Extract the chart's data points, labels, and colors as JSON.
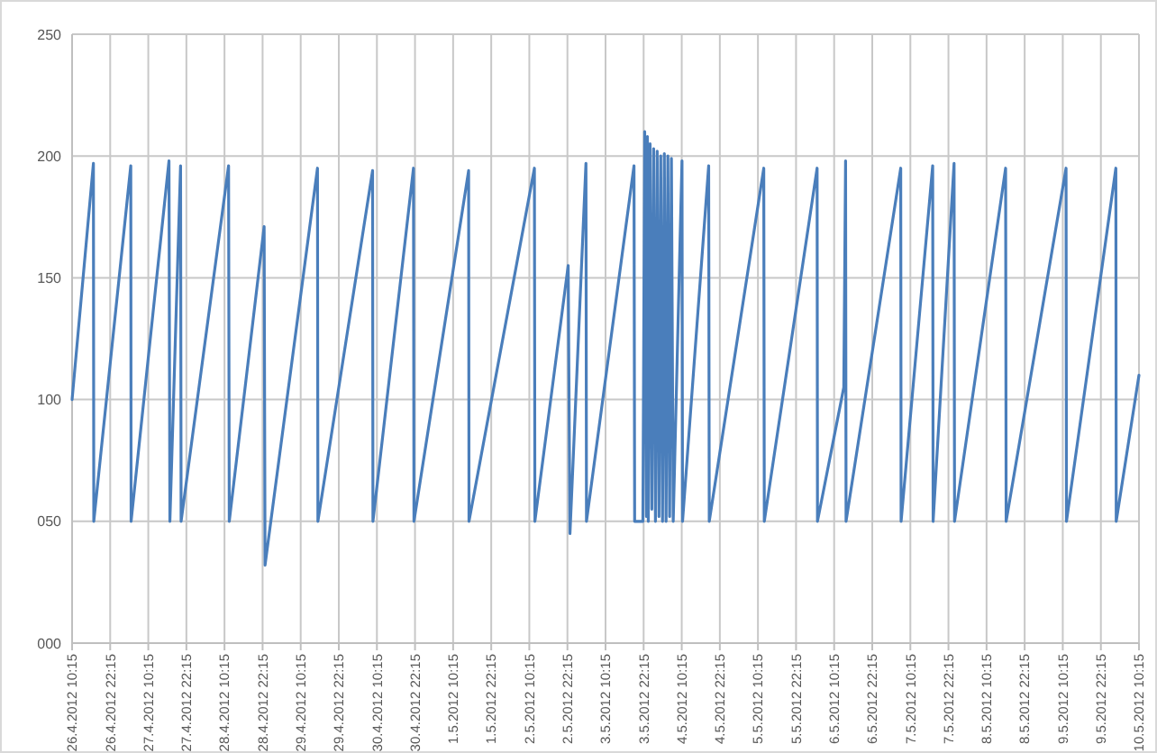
{
  "chart_data": {
    "type": "line",
    "grid": true,
    "marker": "none",
    "line_style": "solid",
    "ylim": [
      0,
      250
    ],
    "yticks": [
      {
        "value": 0,
        "label": "000"
      },
      {
        "value": 50,
        "label": "050"
      },
      {
        "value": 100,
        "label": "100"
      },
      {
        "value": 150,
        "label": "150"
      },
      {
        "value": 200,
        "label": "200"
      },
      {
        "value": 250,
        "label": "250"
      }
    ],
    "xlim": [
      "2012-04-26T10:15",
      "2012-05-10T10:15"
    ],
    "xticks": [
      {
        "value": "2012-04-26T10:15",
        "label": "26.4.2012 10:15"
      },
      {
        "value": "2012-04-26T22:15",
        "label": "26.4.2012 22:15"
      },
      {
        "value": "2012-04-27T10:15",
        "label": "27.4.2012 10:15"
      },
      {
        "value": "2012-04-27T22:15",
        "label": "27.4.2012 22:15"
      },
      {
        "value": "2012-04-28T10:15",
        "label": "28.4.2012 10:15"
      },
      {
        "value": "2012-04-28T22:15",
        "label": "28.4.2012 22:15"
      },
      {
        "value": "2012-04-29T10:15",
        "label": "29.4.2012 10:15"
      },
      {
        "value": "2012-04-29T22:15",
        "label": "29.4.2012 22:15"
      },
      {
        "value": "2012-04-30T10:15",
        "label": "30.4.2012 10:15"
      },
      {
        "value": "2012-04-30T22:15",
        "label": "30.4.2012 22:15"
      },
      {
        "value": "2012-05-01T10:15",
        "label": "1.5.2012 10:15"
      },
      {
        "value": "2012-05-01T22:15",
        "label": "1.5.2012 22:15"
      },
      {
        "value": "2012-05-02T10:15",
        "label": "2.5.2012 10:15"
      },
      {
        "value": "2012-05-02T22:15",
        "label": "2.5.2012 22:15"
      },
      {
        "value": "2012-05-03T10:15",
        "label": "3.5.2012 10:15"
      },
      {
        "value": "2012-05-03T22:15",
        "label": "3.5.2012 22:15"
      },
      {
        "value": "2012-05-04T10:15",
        "label": "4.5.2012 10:15"
      },
      {
        "value": "2012-05-04T22:15",
        "label": "4.5.2012 22:15"
      },
      {
        "value": "2012-05-05T10:15",
        "label": "5.5.2012 10:15"
      },
      {
        "value": "2012-05-05T22:15",
        "label": "5.5.2012 22:15"
      },
      {
        "value": "2012-05-06T10:15",
        "label": "6.5.2012 10:15"
      },
      {
        "value": "2012-05-06T22:15",
        "label": "6.5.2012 22:15"
      },
      {
        "value": "2012-05-07T10:15",
        "label": "7.5.2012 10:15"
      },
      {
        "value": "2012-05-07T22:15",
        "label": "7.5.2012 22:15"
      },
      {
        "value": "2012-05-08T10:15",
        "label": "8.5.2012 10:15"
      },
      {
        "value": "2012-05-08T22:15",
        "label": "8.5.2012 22:15"
      },
      {
        "value": "2012-05-09T10:15",
        "label": "9.5.2012 10:15"
      },
      {
        "value": "2012-05-09T22:15",
        "label": "9.5.2012 22:15"
      },
      {
        "value": "2012-05-10T10:15",
        "label": "10.5.2012 10:15"
      }
    ],
    "series": [
      {
        "color": "#4a7ebb",
        "x": [
          "2012-04-26T10:15",
          "2012-04-26T16:58",
          "2012-04-26T17:05",
          "2012-04-27T04:44",
          "2012-04-27T04:50",
          "2012-04-27T16:46",
          "2012-04-27T17:03",
          "2012-04-27T20:25",
          "2012-04-27T20:35",
          "2012-04-28T11:32",
          "2012-04-28T11:45",
          "2012-04-28T22:44",
          "2012-04-28T23:01",
          "2012-04-29T15:32",
          "2012-04-29T15:40",
          "2012-04-30T08:53",
          "2012-04-30T09:00",
          "2012-04-30T21:46",
          "2012-04-30T21:55",
          "2012-05-01T15:08",
          "2012-05-01T15:15",
          "2012-05-02T11:51",
          "2012-05-02T12:00",
          "2012-05-02T22:29",
          "2012-05-02T23:03",
          "2012-05-03T04:05",
          "2012-05-03T04:15",
          "2012-05-03T19:13",
          "2012-05-03T19:25",
          "2012-05-03T22:01",
          "2012-05-03T22:35",
          "2012-05-03T23:09",
          "2012-05-03T23:26",
          "2012-05-03T23:43",
          "2012-05-04T00:17",
          "2012-05-04T00:50",
          "2012-05-04T01:24",
          "2012-05-04T01:58",
          "2012-05-04T02:31",
          "2012-05-04T03:05",
          "2012-05-04T03:38",
          "2012-05-04T04:12",
          "2012-05-04T04:46",
          "2012-05-04T05:19",
          "2012-05-04T05:53",
          "2012-05-04T06:26",
          "2012-05-04T07:00",
          "2012-05-04T07:34",
          "2012-05-04T10:20",
          "2012-05-04T10:30",
          "2012-05-04T18:44",
          "2012-05-04T18:55",
          "2012-05-05T12:05",
          "2012-05-05T12:15",
          "2012-05-06T04:53",
          "2012-05-06T05:00",
          "2012-05-06T13:17",
          "2012-05-06T13:51",
          "2012-05-06T14:00",
          "2012-05-07T07:13",
          "2012-05-07T07:20",
          "2012-05-07T17:17",
          "2012-05-07T17:25",
          "2012-05-08T00:01",
          "2012-05-08T00:10",
          "2012-05-08T16:15",
          "2012-05-08T16:25",
          "2012-05-09T11:17",
          "2012-05-09T11:25",
          "2012-05-10T02:58",
          "2012-05-10T03:05",
          "2012-05-10T10:15"
        ],
        "values": [
          100,
          197,
          50,
          196,
          50,
          198,
          50,
          196,
          50,
          196,
          50,
          171,
          32,
          195,
          50,
          194,
          50,
          195,
          50,
          194,
          50,
          195,
          50,
          155,
          45,
          197,
          50,
          196,
          50,
          50,
          210,
          52,
          208,
          50,
          205,
          55,
          203,
          50,
          202,
          52,
          200,
          50,
          201,
          50,
          200,
          52,
          199,
          50,
          198,
          50,
          196,
          50,
          195,
          50,
          195,
          50,
          105,
          198,
          50,
          195,
          50,
          196,
          50,
          197,
          50,
          195,
          50,
          195,
          50,
          195,
          50,
          110
        ]
      }
    ]
  }
}
